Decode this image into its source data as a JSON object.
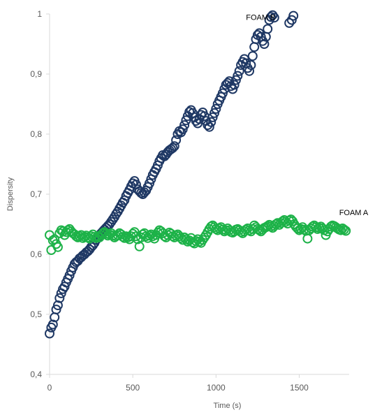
{
  "chart_data": {
    "type": "scatter",
    "title": "",
    "xlabel": "Time (s)",
    "ylabel": "Dispersity",
    "xlim": [
      0,
      1800
    ],
    "ylim": [
      0.4,
      1.0
    ],
    "x_ticks": [
      "0",
      "500",
      "1000",
      "1500"
    ],
    "y_ticks": [
      "0,4",
      "0,5",
      "0,6",
      "0,7",
      "0,8",
      "0,9",
      "1"
    ],
    "grid": false,
    "legend": "none",
    "series": [
      {
        "name": "FOAM B",
        "color": "#1F3864",
        "points": [
          [
            0,
            0.468
          ],
          [
            10,
            0.478
          ],
          [
            20,
            0.483
          ],
          [
            30,
            0.495
          ],
          [
            40,
            0.508
          ],
          [
            50,
            0.515
          ],
          [
            60,
            0.527
          ],
          [
            70,
            0.535
          ],
          [
            80,
            0.542
          ],
          [
            90,
            0.546
          ],
          [
            100,
            0.553
          ],
          [
            110,
            0.559
          ],
          [
            120,
            0.565
          ],
          [
            130,
            0.572
          ],
          [
            140,
            0.578
          ],
          [
            150,
            0.584
          ],
          [
            160,
            0.587
          ],
          [
            170,
            0.589
          ],
          [
            180,
            0.593
          ],
          [
            190,
            0.595
          ],
          [
            200,
            0.598
          ],
          [
            210,
            0.6
          ],
          [
            220,
            0.603
          ],
          [
            230,
            0.605
          ],
          [
            240,
            0.608
          ],
          [
            250,
            0.612
          ],
          [
            260,
            0.615
          ],
          [
            270,
            0.619
          ],
          [
            280,
            0.624
          ],
          [
            290,
            0.628
          ],
          [
            300,
            0.632
          ],
          [
            310,
            0.635
          ],
          [
            320,
            0.638
          ],
          [
            330,
            0.641
          ],
          [
            340,
            0.644
          ],
          [
            350,
            0.647
          ],
          [
            360,
            0.65
          ],
          [
            370,
            0.654
          ],
          [
            380,
            0.658
          ],
          [
            390,
            0.662
          ],
          [
            400,
            0.667
          ],
          [
            410,
            0.671
          ],
          [
            420,
            0.676
          ],
          [
            430,
            0.681
          ],
          [
            440,
            0.686
          ],
          [
            450,
            0.69
          ],
          [
            460,
            0.697
          ],
          [
            470,
            0.702
          ],
          [
            480,
            0.707
          ],
          [
            490,
            0.713
          ],
          [
            500,
            0.718
          ],
          [
            510,
            0.722
          ],
          [
            520,
            0.716
          ],
          [
            530,
            0.708
          ],
          [
            540,
            0.705
          ],
          [
            550,
            0.702
          ],
          [
            560,
            0.7
          ],
          [
            570,
            0.703
          ],
          [
            580,
            0.706
          ],
          [
            590,
            0.712
          ],
          [
            600,
            0.718
          ],
          [
            610,
            0.725
          ],
          [
            620,
            0.732
          ],
          [
            630,
            0.737
          ],
          [
            640,
            0.742
          ],
          [
            650,
            0.748
          ],
          [
            660,
            0.755
          ],
          [
            670,
            0.76
          ],
          [
            680,
            0.765
          ],
          [
            690,
            0.763
          ],
          [
            700,
            0.766
          ],
          [
            710,
            0.77
          ],
          [
            720,
            0.773
          ],
          [
            730,
            0.775
          ],
          [
            740,
            0.777
          ],
          [
            750,
            0.78
          ],
          [
            760,
            0.79
          ],
          [
            770,
            0.8
          ],
          [
            780,
            0.805
          ],
          [
            790,
            0.803
          ],
          [
            800,
            0.808
          ],
          [
            810,
            0.815
          ],
          [
            820,
            0.823
          ],
          [
            830,
            0.83
          ],
          [
            840,
            0.837
          ],
          [
            850,
            0.84
          ],
          [
            860,
            0.835
          ],
          [
            870,
            0.828
          ],
          [
            880,
            0.822
          ],
          [
            890,
            0.818
          ],
          [
            900,
            0.825
          ],
          [
            910,
            0.832
          ],
          [
            920,
            0.836
          ],
          [
            930,
            0.83
          ],
          [
            940,
            0.822
          ],
          [
            950,
            0.815
          ],
          [
            960,
            0.812
          ],
          [
            970,
            0.82
          ],
          [
            980,
            0.828
          ],
          [
            990,
            0.835
          ],
          [
            1000,
            0.842
          ],
          [
            1010,
            0.85
          ],
          [
            1020,
            0.856
          ],
          [
            1030,
            0.862
          ],
          [
            1040,
            0.868
          ],
          [
            1050,
            0.875
          ],
          [
            1060,
            0.882
          ],
          [
            1070,
            0.885
          ],
          [
            1080,
            0.888
          ],
          [
            1090,
            0.88
          ],
          [
            1100,
            0.875
          ],
          [
            1110,
            0.882
          ],
          [
            1120,
            0.89
          ],
          [
            1130,
            0.897
          ],
          [
            1140,
            0.905
          ],
          [
            1150,
            0.915
          ],
          [
            1160,
            0.92
          ],
          [
            1170,
            0.925
          ],
          [
            1180,
            0.918
          ],
          [
            1190,
            0.91
          ],
          [
            1200,
            0.905
          ],
          [
            1210,
            0.915
          ],
          [
            1220,
            0.93
          ],
          [
            1230,
            0.945
          ],
          [
            1240,
            0.958
          ],
          [
            1250,
            0.965
          ],
          [
            1260,
            0.968
          ],
          [
            1270,
            0.962
          ],
          [
            1280,
            0.955
          ],
          [
            1290,
            0.95
          ],
          [
            1300,
            0.962
          ],
          [
            1310,
            0.975
          ],
          [
            1320,
            0.99
          ],
          [
            1330,
            0.995
          ],
          [
            1340,
            0.998
          ],
          [
            1350,
            0.994
          ],
          [
            1440,
            0.985
          ],
          [
            1455,
            0.99
          ],
          [
            1465,
            0.997
          ]
        ]
      },
      {
        "name": "FOAM A",
        "color": "#1DB248",
        "points": [
          [
            0,
            0.632
          ],
          [
            10,
            0.607
          ],
          [
            20,
            0.623
          ],
          [
            30,
            0.625
          ],
          [
            40,
            0.617
          ],
          [
            50,
            0.612
          ],
          [
            60,
            0.635
          ],
          [
            70,
            0.64
          ],
          [
            80,
            0.638
          ],
          [
            90,
            0.632
          ],
          [
            100,
            0.637
          ],
          [
            110,
            0.64
          ],
          [
            120,
            0.642
          ],
          [
            130,
            0.638
          ],
          [
            140,
            0.635
          ],
          [
            150,
            0.633
          ],
          [
            160,
            0.63
          ],
          [
            170,
            0.628
          ],
          [
            180,
            0.63
          ],
          [
            190,
            0.632
          ],
          [
            200,
            0.627
          ],
          [
            210,
            0.629
          ],
          [
            220,
            0.631
          ],
          [
            230,
            0.628
          ],
          [
            240,
            0.626
          ],
          [
            250,
            0.63
          ],
          [
            260,
            0.633
          ],
          [
            270,
            0.629
          ],
          [
            280,
            0.627
          ],
          [
            290,
            0.63
          ],
          [
            300,
            0.628
          ],
          [
            310,
            0.632
          ],
          [
            320,
            0.635
          ],
          [
            330,
            0.637
          ],
          [
            340,
            0.634
          ],
          [
            350,
            0.631
          ],
          [
            360,
            0.633
          ],
          [
            370,
            0.635
          ],
          [
            380,
            0.631
          ],
          [
            390,
            0.628
          ],
          [
            400,
            0.63
          ],
          [
            410,
            0.632
          ],
          [
            420,
            0.635
          ],
          [
            430,
            0.633
          ],
          [
            440,
            0.629
          ],
          [
            450,
            0.627
          ],
          [
            460,
            0.63
          ],
          [
            470,
            0.628
          ],
          [
            480,
            0.625
          ],
          [
            490,
            0.63
          ],
          [
            500,
            0.634
          ],
          [
            510,
            0.637
          ],
          [
            520,
            0.63
          ],
          [
            530,
            0.625
          ],
          [
            540,
            0.613
          ],
          [
            550,
            0.628
          ],
          [
            560,
            0.633
          ],
          [
            570,
            0.635
          ],
          [
            580,
            0.63
          ],
          [
            590,
            0.627
          ],
          [
            600,
            0.631
          ],
          [
            610,
            0.633
          ],
          [
            620,
            0.63
          ],
          [
            630,
            0.626
          ],
          [
            640,
            0.632
          ],
          [
            650,
            0.636
          ],
          [
            660,
            0.64
          ],
          [
            670,
            0.638
          ],
          [
            680,
            0.635
          ],
          [
            690,
            0.63
          ],
          [
            700,
            0.628
          ],
          [
            710,
            0.632
          ],
          [
            720,
            0.636
          ],
          [
            730,
            0.634
          ],
          [
            740,
            0.63
          ],
          [
            750,
            0.628
          ],
          [
            760,
            0.631
          ],
          [
            770,
            0.633
          ],
          [
            780,
            0.63
          ],
          [
            790,
            0.627
          ],
          [
            800,
            0.624
          ],
          [
            810,
            0.628
          ],
          [
            820,
            0.625
          ],
          [
            830,
            0.621
          ],
          [
            840,
            0.623
          ],
          [
            850,
            0.627
          ],
          [
            860,
            0.62
          ],
          [
            870,
            0.618
          ],
          [
            880,
            0.622
          ],
          [
            890,
            0.625
          ],
          [
            900,
            0.621
          ],
          [
            910,
            0.619
          ],
          [
            920,
            0.624
          ],
          [
            930,
            0.628
          ],
          [
            940,
            0.632
          ],
          [
            950,
            0.637
          ],
          [
            960,
            0.642
          ],
          [
            970,
            0.646
          ],
          [
            980,
            0.648
          ],
          [
            990,
            0.645
          ],
          [
            1000,
            0.642
          ],
          [
            1010,
            0.64
          ],
          [
            1020,
            0.643
          ],
          [
            1030,
            0.645
          ],
          [
            1040,
            0.641
          ],
          [
            1050,
            0.638
          ],
          [
            1060,
            0.64
          ],
          [
            1070,
            0.643
          ],
          [
            1080,
            0.64
          ],
          [
            1090,
            0.637
          ],
          [
            1100,
            0.636
          ],
          [
            1110,
            0.638
          ],
          [
            1120,
            0.641
          ],
          [
            1130,
            0.642
          ],
          [
            1140,
            0.64
          ],
          [
            1150,
            0.637
          ],
          [
            1160,
            0.635
          ],
          [
            1170,
            0.638
          ],
          [
            1180,
            0.641
          ],
          [
            1190,
            0.643
          ],
          [
            1200,
            0.64
          ],
          [
            1210,
            0.638
          ],
          [
            1220,
            0.642
          ],
          [
            1230,
            0.648
          ],
          [
            1240,
            0.645
          ],
          [
            1250,
            0.642
          ],
          [
            1260,
            0.64
          ],
          [
            1270,
            0.638
          ],
          [
            1280,
            0.641
          ],
          [
            1290,
            0.644
          ],
          [
            1300,
            0.645
          ],
          [
            1310,
            0.647
          ],
          [
            1320,
            0.649
          ],
          [
            1330,
            0.646
          ],
          [
            1340,
            0.644
          ],
          [
            1350,
            0.647
          ],
          [
            1360,
            0.65
          ],
          [
            1370,
            0.652
          ],
          [
            1380,
            0.649
          ],
          [
            1390,
            0.652
          ],
          [
            1400,
            0.655
          ],
          [
            1410,
            0.657
          ],
          [
            1420,
            0.654
          ],
          [
            1430,
            0.651
          ],
          [
            1440,
            0.656
          ],
          [
            1450,
            0.658
          ],
          [
            1460,
            0.655
          ],
          [
            1470,
            0.65
          ],
          [
            1480,
            0.646
          ],
          [
            1490,
            0.643
          ],
          [
            1500,
            0.64
          ],
          [
            1510,
            0.642
          ],
          [
            1520,
            0.645
          ],
          [
            1530,
            0.641
          ],
          [
            1540,
            0.639
          ],
          [
            1550,
            0.626
          ],
          [
            1560,
            0.64
          ],
          [
            1570,
            0.643
          ],
          [
            1580,
            0.646
          ],
          [
            1590,
            0.648
          ],
          [
            1600,
            0.645
          ],
          [
            1610,
            0.642
          ],
          [
            1620,
            0.644
          ],
          [
            1630,
            0.646
          ],
          [
            1640,
            0.643
          ],
          [
            1650,
            0.64
          ],
          [
            1660,
            0.632
          ],
          [
            1670,
            0.638
          ],
          [
            1680,
            0.642
          ],
          [
            1690,
            0.646
          ],
          [
            1700,
            0.648
          ],
          [
            1710,
            0.647
          ],
          [
            1720,
            0.645
          ],
          [
            1730,
            0.643
          ],
          [
            1740,
            0.641
          ],
          [
            1750,
            0.64
          ],
          [
            1760,
            0.643
          ],
          [
            1770,
            0.641
          ],
          [
            1780,
            0.639
          ]
        ]
      }
    ],
    "annotations": [
      {
        "text": "FOAM B",
        "x": 1180,
        "y": 0.99
      },
      {
        "text": "FOAM A",
        "x": 1740,
        "y": 0.665
      }
    ]
  }
}
